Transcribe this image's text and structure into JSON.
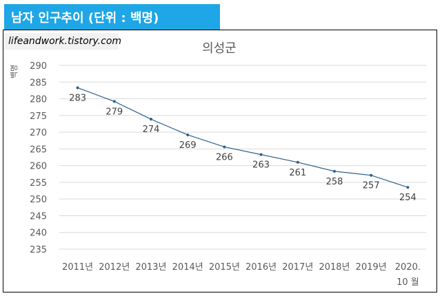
{
  "header": {
    "banner_title": "남자 인구추이 (단위 : 백명)",
    "watermark": "lifeandwork.tistory.com"
  },
  "colors": {
    "banner_bg": "#1ea6e6",
    "line": "#2e5f8a",
    "grid": "#d9d9d9"
  },
  "chart_data": {
    "type": "line",
    "title": "의성군",
    "ylabel": "백명",
    "ylim": [
      235,
      290
    ],
    "yticks": [
      235,
      240,
      245,
      250,
      255,
      260,
      265,
      270,
      275,
      280,
      285,
      290
    ],
    "grid": true,
    "legend": "none",
    "categories": [
      "2011년",
      "2012년",
      "2013년",
      "2014년",
      "2015년",
      "2016년",
      "2017년",
      "2018년",
      "2019년",
      "2020. 10 월"
    ],
    "series": [
      {
        "values": [
          283.3,
          279.2,
          273.9,
          269.2,
          265.6,
          263.3,
          261.0,
          258.3,
          257.1,
          253.5
        ],
        "labels": [
          "283",
          "279",
          "274",
          "269",
          "266",
          "263",
          "261",
          "258",
          "257",
          "254"
        ]
      }
    ]
  }
}
